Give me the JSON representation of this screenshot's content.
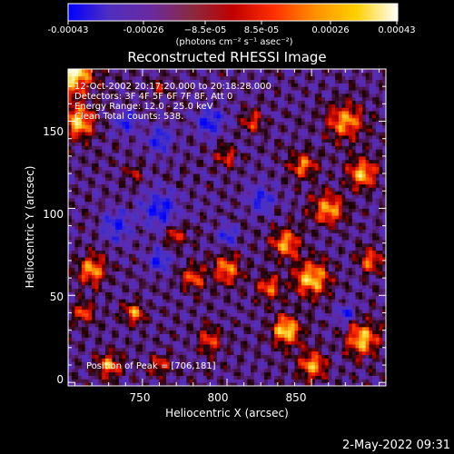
{
  "colorbar": {
    "tick_labels": [
      "-0.00043",
      "-0.00026",
      "−8.5e-05",
      "8.5e-05",
      "0.00026",
      "0.00043"
    ],
    "unit_label": "(photons cm⁻² s⁻¹ asec⁻²)",
    "colors": [
      "#0000ff",
      "#4f2fbf",
      "#6a2aa0",
      "#8a2a40",
      "#c00000",
      "#ff3000",
      "#ff9000",
      "#ffd000",
      "#ffffff"
    ]
  },
  "timestamp": "2-May-2022 09:31",
  "chart_data": {
    "type": "heatmap",
    "title": "Reconstructed RHESSI Image",
    "xlabel": "Heliocentric X (arcsec)",
    "ylabel": "Heliocentric Y (arcsec)",
    "xlim": [
      706,
      894
    ],
    "ylim": [
      -2,
      180
    ],
    "x_ticks": [
      750,
      800,
      850
    ],
    "y_ticks": [
      0,
      50,
      100,
      150
    ],
    "x_tick_labels": [
      "750",
      "800",
      "850"
    ],
    "y_tick_labels": [
      "0",
      "50",
      "100",
      "150"
    ],
    "annotations": [
      "12-Oct-2002 20:17:20.000 to 20:18:28.000",
      "Detectors: 3F 4F 5F 6F 7F 8F, Att 0",
      "Energy Range: 12.0 - 25.0 keV",
      "Clean    Total counts: 538."
    ],
    "peak_label": "Position of Peak = [706,181]",
    "peak_position": [
      706,
      181
    ]
  }
}
